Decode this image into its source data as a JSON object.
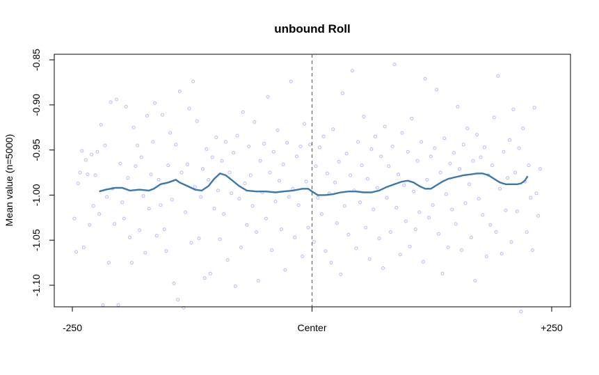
{
  "chart_data": {
    "type": "scatter",
    "title": "unbound Roll",
    "xlabel": "",
    "ylabel": "Mean value (n=5000)",
    "xlim": [
      -250,
      250
    ],
    "ylim": [
      -1.14,
      -0.845
    ],
    "x_ticks": [
      {
        "value": -250,
        "label": "-250"
      },
      {
        "value": 0,
        "label": "Center"
      },
      {
        "value": 250,
        "label": "+250"
      }
    ],
    "y_ticks": [
      {
        "value": -0.85,
        "label": "-0.85"
      },
      {
        "value": -0.9,
        "label": "-0.90"
      },
      {
        "value": -0.95,
        "label": "-0.95"
      },
      {
        "value": -1.0,
        "label": "-1.00"
      },
      {
        "value": -1.05,
        "label": "-1.05"
      },
      {
        "value": -1.1,
        "label": "-1.10"
      }
    ],
    "center_line": {
      "x": 0,
      "style": "dashed"
    },
    "grid": false,
    "colors": {
      "points": "#b9b9f5",
      "smooth": "#3a77aa",
      "center_line": "#555555"
    },
    "series": [
      {
        "type": "scatter",
        "points": [
          [
            -248,
            -1.026
          ],
          [
            -246,
            -1.063
          ],
          [
            -244,
            -0.987
          ],
          [
            -242,
            -0.975
          ],
          [
            -240,
            -0.951
          ],
          [
            -238,
            -1.058
          ],
          [
            -236,
            -0.961
          ],
          [
            -234,
            -0.977
          ],
          [
            -232,
            -1.033
          ],
          [
            -230,
            -0.955
          ],
          [
            -228,
            -1.012
          ],
          [
            -226,
            -0.978
          ],
          [
            -224,
            -0.952
          ],
          [
            -222,
            -1.021
          ],
          [
            -220,
            -0.922
          ],
          [
            -218,
            -1.122
          ],
          [
            -216,
            -0.945
          ],
          [
            -214,
            -1.002
          ],
          [
            -212,
            -1.075
          ],
          [
            -210,
            -0.897
          ],
          [
            -208,
            -0.993
          ],
          [
            -206,
            -1.032
          ],
          [
            -204,
            -0.894
          ],
          [
            -202,
            -1.122
          ],
          [
            -200,
            -0.965
          ],
          [
            -198,
            -1.008
          ],
          [
            -196,
            -1.026
          ],
          [
            -194,
            -0.902
          ],
          [
            -192,
            -0.981
          ],
          [
            -190,
            -1.047
          ],
          [
            -188,
            -1.075
          ],
          [
            -186,
            -0.925
          ],
          [
            -184,
            -0.968
          ],
          [
            -182,
            -0.945
          ],
          [
            -180,
            -1.039
          ],
          [
            -178,
            -0.958
          ],
          [
            -176,
            -1.001
          ],
          [
            -174,
            -1.064
          ],
          [
            -172,
            -0.912
          ],
          [
            -170,
            -1.015
          ],
          [
            -168,
            -0.977
          ],
          [
            -166,
            -0.941
          ],
          [
            -164,
            -0.898
          ],
          [
            -162,
            -1.045
          ],
          [
            -160,
            -0.983
          ],
          [
            -158,
            -1.011
          ],
          [
            -156,
            -0.911
          ],
          [
            -154,
            -1.038
          ],
          [
            -152,
            -1.062
          ],
          [
            -150,
            -0.967
          ],
          [
            -148,
            -0.931
          ],
          [
            -146,
            -1.005
          ],
          [
            -144,
            -1.098
          ],
          [
            -142,
            -0.944
          ],
          [
            -140,
            -1.116
          ],
          [
            -138,
            -0.885
          ],
          [
            -136,
            -0.975
          ],
          [
            -134,
            -1.125
          ],
          [
            -132,
            -1.019
          ],
          [
            -130,
            -0.966
          ],
          [
            -128,
            -0.904
          ],
          [
            -126,
            -1.053
          ],
          [
            -124,
            -0.874
          ],
          [
            -122,
            -0.991
          ],
          [
            -120,
            -0.918
          ],
          [
            -118,
            -1.048
          ],
          [
            -116,
            -1.002
          ],
          [
            -114,
            -0.971
          ],
          [
            -112,
            -1.092
          ],
          [
            -110,
            -0.949
          ],
          [
            -108,
            -0.983
          ],
          [
            -106,
            -1.087
          ],
          [
            -104,
            -0.958
          ],
          [
            -102,
            -1.015
          ],
          [
            -100,
            -0.936
          ],
          [
            -98,
            -0.995
          ],
          [
            -96,
            -1.049
          ],
          [
            -94,
            -0.962
          ],
          [
            -92,
            -1.021
          ],
          [
            -90,
            -0.941
          ],
          [
            -88,
            -1.072
          ],
          [
            -86,
            -0.975
          ],
          [
            -84,
            -0.998
          ],
          [
            -82,
            -0.953
          ],
          [
            -80,
            -1.101
          ],
          [
            -78,
            -0.934
          ],
          [
            -76,
            -1.004
          ],
          [
            -74,
            -1.058
          ],
          [
            -72,
            -0.908
          ],
          [
            -70,
            -0.987
          ],
          [
            -68,
            -1.033
          ],
          [
            -66,
            -0.946
          ],
          [
            -64,
            -0.978
          ],
          [
            -62,
            -1.012
          ],
          [
            -60,
            -0.919
          ],
          [
            -58,
            -1.041
          ],
          [
            -56,
            -1.095
          ],
          [
            -54,
            -0.962
          ],
          [
            -52,
            -0.997
          ],
          [
            -50,
            -0.943
          ],
          [
            -48,
            -1.026
          ],
          [
            -46,
            -0.891
          ],
          [
            -44,
            -0.975
          ],
          [
            -42,
            -1.061
          ],
          [
            -40,
            -0.952
          ],
          [
            -38,
            -1.007
          ],
          [
            -36,
            -0.928
          ],
          [
            -34,
            -0.984
          ],
          [
            -32,
            -1.038
          ],
          [
            -30,
            -0.966
          ],
          [
            -28,
            -1.083
          ],
          [
            -26,
            -0.942
          ],
          [
            -24,
            -1.002
          ],
          [
            -22,
            -0.874
          ],
          [
            -20,
            -0.993
          ],
          [
            -18,
            -1.047
          ],
          [
            -16,
            -0.957
          ],
          [
            -14,
            -1.011
          ],
          [
            -12,
            -0.946
          ],
          [
            -10,
            -1.068
          ],
          [
            -8,
            -0.921
          ],
          [
            -6,
            -0.985
          ],
          [
            -4,
            -1.036
          ],
          [
            -2,
            -0.944
          ],
          [
            2,
            -1.052
          ],
          [
            4,
            -0.968
          ],
          [
            6,
            -1.003
          ],
          [
            8,
            -0.947
          ],
          [
            10,
            -1.021
          ],
          [
            12,
            -0.935
          ],
          [
            14,
            -1.062
          ],
          [
            16,
            -0.976
          ],
          [
            18,
            -0.998
          ],
          [
            20,
            -1.075
          ],
          [
            22,
            -0.927
          ],
          [
            24,
            -0.986
          ],
          [
            26,
            -1.031
          ],
          [
            28,
            -0.963
          ],
          [
            30,
            -1.088
          ],
          [
            32,
            -0.887
          ],
          [
            34,
            -1.012
          ],
          [
            36,
            -0.954
          ],
          [
            38,
            -1.044
          ],
          [
            40,
            -0.978
          ],
          [
            42,
            -0.862
          ],
          [
            44,
            -0.995
          ],
          [
            46,
            -1.059
          ],
          [
            48,
            -0.941
          ],
          [
            50,
            -1.008
          ],
          [
            52,
            -0.967
          ],
          [
            54,
            -0.913
          ],
          [
            56,
            -1.036
          ],
          [
            58,
            -0.982
          ],
          [
            60,
            -1.071
          ],
          [
            62,
            -0.949
          ],
          [
            64,
            -1.016
          ],
          [
            66,
            -0.935
          ],
          [
            68,
            -0.992
          ],
          [
            70,
            -1.048
          ],
          [
            72,
            -0.957
          ],
          [
            74,
            -1.081
          ],
          [
            76,
            -0.924
          ],
          [
            78,
            -1.003
          ],
          [
            80,
            -0.968
          ],
          [
            82,
            -1.041
          ],
          [
            84,
            -0.946
          ],
          [
            86,
            -0.855
          ],
          [
            88,
            -1.014
          ],
          [
            90,
            -0.977
          ],
          [
            92,
            -1.066
          ],
          [
            94,
            -0.931
          ],
          [
            96,
            -0.989
          ],
          [
            98,
            -1.029
          ],
          [
            100,
            -0.952
          ],
          [
            102,
            -1.057
          ],
          [
            104,
            -0.915
          ],
          [
            106,
            -0.996
          ],
          [
            108,
            -1.038
          ],
          [
            110,
            -0.962
          ],
          [
            112,
            -1.019
          ],
          [
            114,
            -0.941
          ],
          [
            116,
            -1.074
          ],
          [
            118,
            -0.871
          ],
          [
            120,
            -0.983
          ],
          [
            122,
            -1.025
          ],
          [
            124,
            -0.957
          ],
          [
            126,
            -1.011
          ],
          [
            128,
            -0.948
          ],
          [
            130,
            -0.883
          ],
          [
            132,
            -1.043
          ],
          [
            134,
            -0.975
          ],
          [
            136,
            -1.087
          ],
          [
            138,
            -0.937
          ],
          [
            140,
            -0.999
          ],
          [
            142,
            -1.058
          ],
          [
            144,
            -0.965
          ],
          [
            146,
            -1.016
          ],
          [
            148,
            -0.953
          ],
          [
            150,
            -1.032
          ],
          [
            152,
            -0.902
          ],
          [
            154,
            -0.971
          ],
          [
            156,
            -1.061
          ],
          [
            158,
            -0.944
          ],
          [
            160,
            -1.009
          ],
          [
            162,
            -0.926
          ],
          [
            164,
            -0.988
          ],
          [
            166,
            -1.047
          ],
          [
            168,
            -0.962
          ],
          [
            170,
            -1.095
          ],
          [
            172,
            -0.933
          ],
          [
            174,
            -1.004
          ],
          [
            176,
            -0.958
          ],
          [
            178,
            -1.022
          ],
          [
            180,
            -0.947
          ],
          [
            182,
            -1.068
          ],
          [
            184,
            -0.978
          ],
          [
            186,
            -1.033
          ],
          [
            188,
            -0.967
          ],
          [
            190,
            -0.914
          ],
          [
            192,
            -1.041
          ],
          [
            194,
            -0.868
          ],
          [
            196,
            -0.993
          ],
          [
            198,
            -1.065
          ],
          [
            200,
            -0.952
          ],
          [
            202,
            -1.017
          ],
          [
            204,
            -0.981
          ],
          [
            206,
            -0.939
          ],
          [
            208,
            -1.052
          ],
          [
            210,
            -0.905
          ],
          [
            212,
            -0.975
          ],
          [
            214,
            -1.018
          ],
          [
            216,
            -0.948
          ],
          [
            218,
            -1.129
          ],
          [
            220,
            -0.926
          ],
          [
            222,
            -0.985
          ],
          [
            224,
            -1.041
          ],
          [
            226,
            -0.967
          ],
          [
            228,
            -1.003
          ],
          [
            230,
            -1.061
          ],
          [
            232,
            -0.903
          ],
          [
            234,
            -0.998
          ],
          [
            236,
            -1.023
          ],
          [
            238,
            -0.971
          ]
        ]
      },
      {
        "type": "line",
        "points": [
          [
            -222,
            -0.996
          ],
          [
            -215,
            -0.994
          ],
          [
            -205,
            -0.992
          ],
          [
            -198,
            -0.992
          ],
          [
            -190,
            -0.995
          ],
          [
            -180,
            -0.994
          ],
          [
            -170,
            -0.995
          ],
          [
            -165,
            -0.993
          ],
          [
            -158,
            -0.988
          ],
          [
            -150,
            -0.986
          ],
          [
            -142,
            -0.983
          ],
          [
            -138,
            -0.986
          ],
          [
            -130,
            -0.99
          ],
          [
            -122,
            -0.994
          ],
          [
            -115,
            -0.995
          ],
          [
            -108,
            -0.99
          ],
          [
            -102,
            -0.982
          ],
          [
            -96,
            -0.976
          ],
          [
            -90,
            -0.978
          ],
          [
            -84,
            -0.983
          ],
          [
            -76,
            -0.99
          ],
          [
            -68,
            -0.995
          ],
          [
            -58,
            -0.996
          ],
          [
            -48,
            -0.996
          ],
          [
            -38,
            -0.997
          ],
          [
            -30,
            -0.996
          ],
          [
            -20,
            -0.995
          ],
          [
            -10,
            -0.993
          ],
          [
            -4,
            -0.993
          ],
          [
            0,
            -0.996
          ],
          [
            6,
            -1.0
          ],
          [
            14,
            -1.0
          ],
          [
            22,
            -0.999
          ],
          [
            30,
            -0.997
          ],
          [
            38,
            -0.996
          ],
          [
            46,
            -0.996
          ],
          [
            54,
            -0.997
          ],
          [
            62,
            -0.997
          ],
          [
            70,
            -0.995
          ],
          [
            78,
            -0.991
          ],
          [
            86,
            -0.988
          ],
          [
            94,
            -0.985
          ],
          [
            100,
            -0.984
          ],
          [
            106,
            -0.986
          ],
          [
            112,
            -0.99
          ],
          [
            118,
            -0.993
          ],
          [
            124,
            -0.993
          ],
          [
            130,
            -0.989
          ],
          [
            136,
            -0.985
          ],
          [
            142,
            -0.982
          ],
          [
            150,
            -0.98
          ],
          [
            158,
            -0.978
          ],
          [
            166,
            -0.977
          ],
          [
            172,
            -0.976
          ],
          [
            178,
            -0.976
          ],
          [
            184,
            -0.978
          ],
          [
            190,
            -0.982
          ],
          [
            196,
            -0.986
          ],
          [
            202,
            -0.988
          ],
          [
            208,
            -0.988
          ],
          [
            214,
            -0.988
          ],
          [
            218,
            -0.987
          ],
          [
            222,
            -0.984
          ],
          [
            225,
            -0.979
          ]
        ]
      }
    ]
  }
}
